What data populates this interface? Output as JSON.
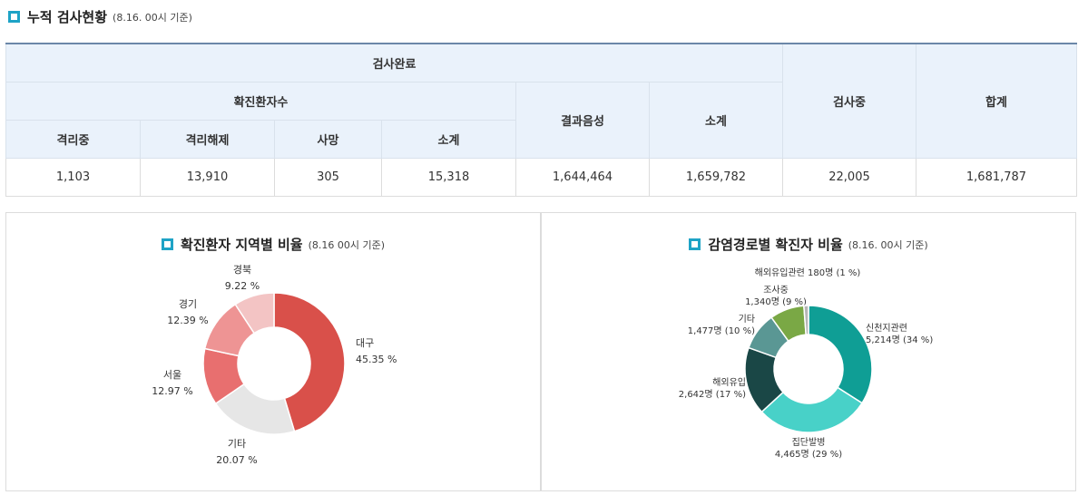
{
  "header": {
    "title": "누적 검사현황",
    "subtitle": "(8.16. 00시 기준)"
  },
  "table": {
    "h_done": "검사완료",
    "h_confirmed": "확진환자수",
    "h_isolating": "격리중",
    "h_released": "격리해제",
    "h_death": "사망",
    "h_subtotal1": "소계",
    "h_negative": "결과음성",
    "h_subtotal2": "소계",
    "h_testing": "검사중",
    "h_total": "합계",
    "v_isolating": "1,103",
    "v_released": "13,910",
    "v_death": "305",
    "v_subtotal1": "15,318",
    "v_negative": "1,644,464",
    "v_subtotal2": "1,659,782",
    "v_testing": "22,005",
    "v_total": "1,681,787"
  },
  "chart1": {
    "title": "확진환자 지역별 비율",
    "subtitle": "(8.16 00시 기준)"
  },
  "chart2": {
    "title": "감염경로별 확진자 비율",
    "subtitle": "(8.16. 00시 기준)"
  },
  "chart_data": [
    {
      "type": "pie",
      "title": "확진환자 지역별 비율",
      "donut": true,
      "slices": [
        {
          "label": "대구",
          "value": 45.35,
          "text": "45.35 %",
          "color": "#d9504a"
        },
        {
          "label": "기타",
          "value": 20.07,
          "text": "20.07 %",
          "color": "#e6e6e6"
        },
        {
          "label": "서울",
          "value": 12.97,
          "text": "12.97 %",
          "color": "#e86f6f"
        },
        {
          "label": "경기",
          "value": 12.39,
          "text": "12.39 %",
          "color": "#ee9494"
        },
        {
          "label": "경북",
          "value": 9.22,
          "text": "9.22 %",
          "color": "#f3c4c4"
        }
      ]
    },
    {
      "type": "pie",
      "title": "감염경로별 확진자 비율",
      "donut": true,
      "slices": [
        {
          "label": "신천지관련",
          "value": 5214,
          "text": "5,214명 (34 %)",
          "color": "#0f9e95"
        },
        {
          "label": "집단발병",
          "value": 4465,
          "text": "4,465명 (29 %)",
          "color": "#48d1c8"
        },
        {
          "label": "해외유입",
          "value": 2642,
          "text": "2,642명 (17 %)",
          "color": "#1a4746"
        },
        {
          "label": "기타",
          "value": 1477,
          "text": "1,477명 (10 %)",
          "color": "#5a9794"
        },
        {
          "label": "조사중",
          "value": 1340,
          "text": "1,340명 (9 %)",
          "color": "#7aa845"
        },
        {
          "label": "해외유입관련",
          "value": 180,
          "text": "180명 (1 %)",
          "color": "#b6b6b6"
        }
      ]
    }
  ]
}
